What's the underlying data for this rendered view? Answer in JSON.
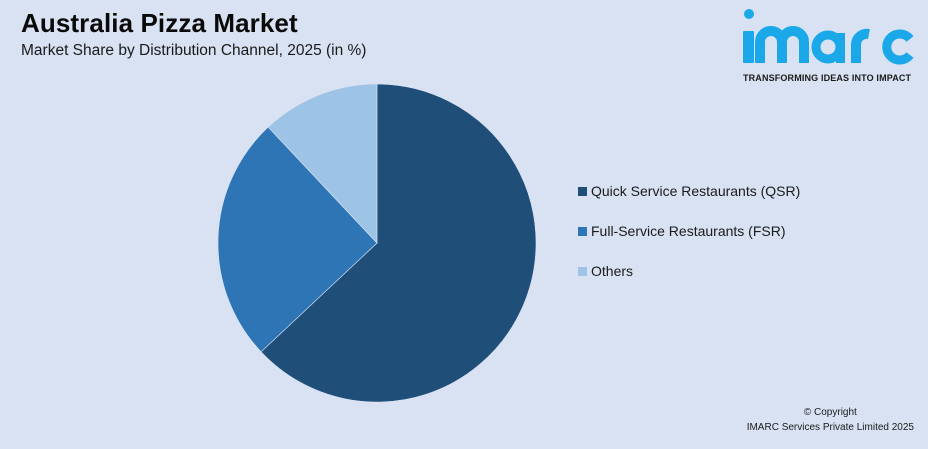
{
  "header": {
    "title": "Australia Pizza Market",
    "subtitle": "Market Share by Distribution Channel, 2025 (in %)"
  },
  "logo": {
    "wordmark": "imarc",
    "tagline": "TRANSFORMING IDEAS INTO IMPACT",
    "color": "#1BA8E8"
  },
  "legend": {
    "items": [
      {
        "label": "Quick Service Restaurants (QSR)",
        "color": "#1F4E79"
      },
      {
        "label": "Full-Service Restaurants (FSR)",
        "color": "#2E75B6"
      },
      {
        "label": "Others",
        "color": "#9DC3E6"
      }
    ]
  },
  "footer": {
    "copyright": "© Copyright",
    "company": "IMARC Services Private Limited 2025"
  },
  "colors": {
    "background": "#D9E2F3"
  },
  "chart_data": {
    "type": "pie",
    "title": "Australia Pizza Market",
    "subtitle": "Market Share by Distribution Channel, 2025 (in %)",
    "categories": [
      "Quick Service Restaurants (QSR)",
      "Full-Service Restaurants (FSR)",
      "Others"
    ],
    "values": [
      63,
      25,
      12
    ],
    "colors": [
      "#1F4E79",
      "#2E75B6",
      "#9DC3E6"
    ],
    "start_angle": "12 o'clock",
    "direction": "clockwise",
    "legend_position": "right",
    "data_labels": false,
    "units": "%"
  }
}
